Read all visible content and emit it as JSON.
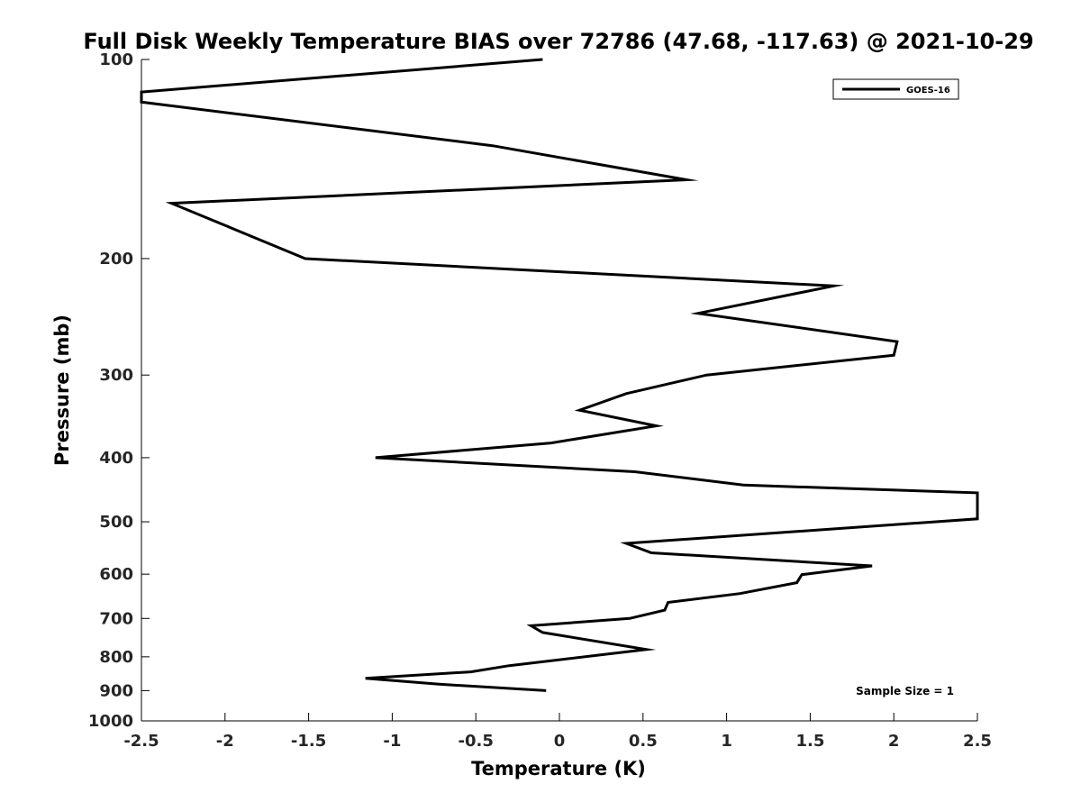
{
  "chart_data": {
    "type": "line",
    "title": "Full Disk Weekly Temperature BIAS over 72786 (47.68, -117.63) @ 2021-10-29",
    "xlabel": "Temperature (K)",
    "ylabel": "Pressure (mb)",
    "xlim": [
      -2.5,
      2.5
    ],
    "ylim": [
      1000,
      100
    ],
    "y_scale": "log",
    "y_reversed": true,
    "grid": false,
    "legend_position": "top-right",
    "x_ticks": [
      -2.5,
      -2,
      -1.5,
      -1,
      -0.5,
      0,
      0.5,
      1,
      1.5,
      2,
      2.5
    ],
    "x_tick_labels": [
      "-2.5",
      "-2",
      "-1.5",
      "-1",
      "-0.5",
      "0",
      "0.5",
      "1",
      "1.5",
      "2",
      "2.5"
    ],
    "y_ticks": [
      100,
      200,
      300,
      400,
      500,
      600,
      700,
      800,
      900,
      1000
    ],
    "y_tick_labels": [
      "100",
      "200",
      "300",
      "400",
      "500",
      "600",
      "700",
      "800",
      "900",
      "1000"
    ],
    "series": [
      {
        "name": "GOES-16",
        "color": "#000000",
        "points": [
          [
            -0.1,
            100
          ],
          [
            -2.5,
            112
          ],
          [
            -2.5,
            116
          ],
          [
            -0.4,
            135
          ],
          [
            0.76,
            152
          ],
          [
            -2.32,
            165
          ],
          [
            -1.52,
            200
          ],
          [
            1.64,
            220
          ],
          [
            0.83,
            242
          ],
          [
            2.02,
            267
          ],
          [
            2.0,
            280
          ],
          [
            0.88,
            300
          ],
          [
            0.4,
            320
          ],
          [
            0.12,
            339
          ],
          [
            0.58,
            358
          ],
          [
            -0.05,
            380
          ],
          [
            -1.1,
            400
          ],
          [
            0.45,
            420
          ],
          [
            1.1,
            440
          ],
          [
            2.5,
            452
          ],
          [
            2.5,
            495
          ],
          [
            0.4,
            539
          ],
          [
            0.55,
            557
          ],
          [
            1.87,
            583
          ],
          [
            1.45,
            601
          ],
          [
            1.42,
            618
          ],
          [
            1.08,
            642
          ],
          [
            0.65,
            662
          ],
          [
            0.63,
            680
          ],
          [
            0.42,
            700
          ],
          [
            -0.17,
            718
          ],
          [
            -0.1,
            735
          ],
          [
            0.52,
            780
          ],
          [
            -0.3,
            825
          ],
          [
            -0.53,
            843
          ],
          [
            -1.16,
            862
          ],
          [
            -0.72,
            880
          ],
          [
            -0.08,
            900
          ]
        ]
      }
    ],
    "annotations": [
      "Sample Size = 1"
    ]
  }
}
